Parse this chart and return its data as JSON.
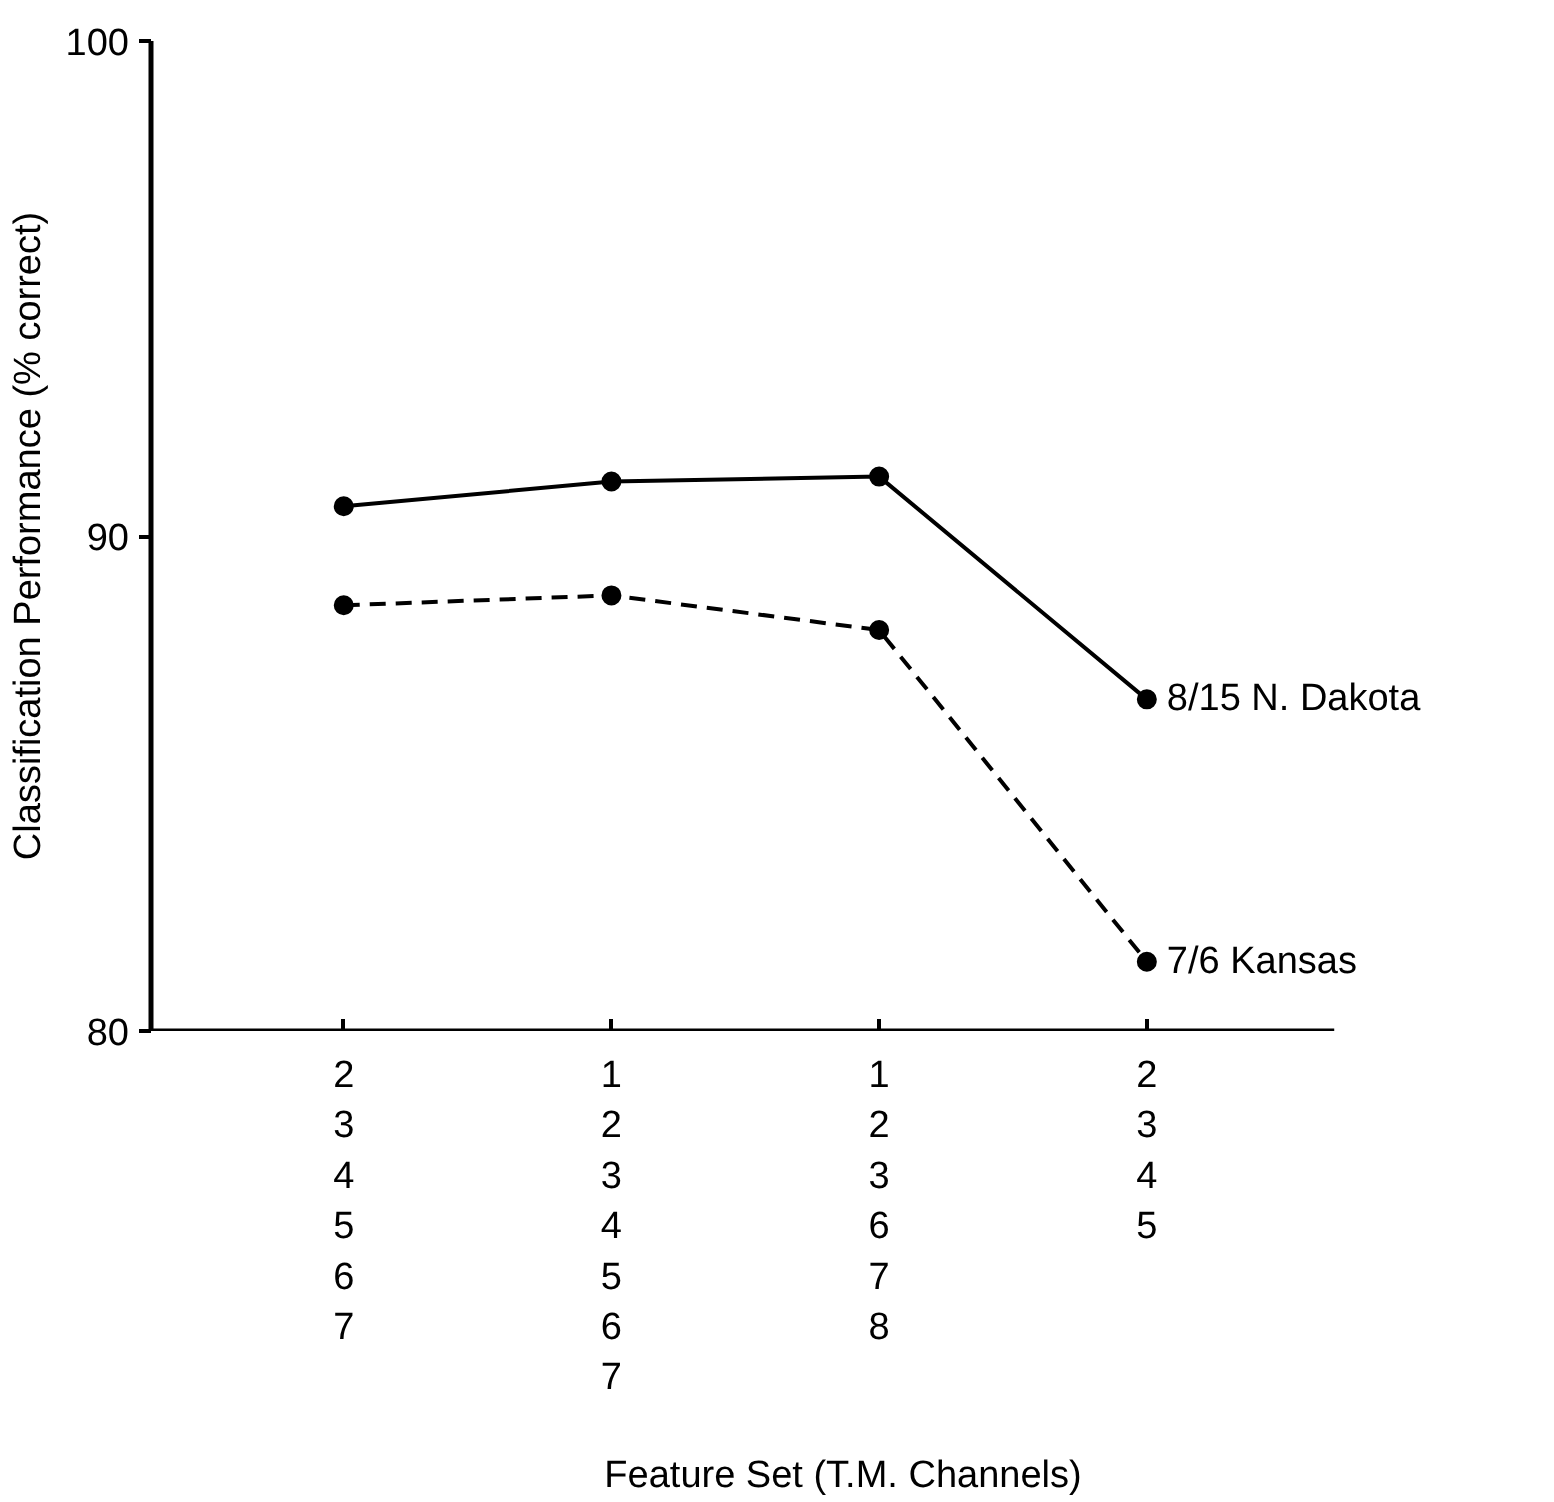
{
  "chart_data": {
    "type": "line",
    "xlabel": "Feature Set (T.M. Channels)",
    "ylabel": "Classification Performance (% correct)",
    "categories": [
      "2\n3\n4\n5\n6\n7",
      "1\n2\n3\n4\n5\n6\n7",
      "1\n2\n3\n6\n7\n8",
      "2\n3\n4\n5"
    ],
    "series": [
      {
        "name": "8/15 N. Dakota",
        "color": "#000000",
        "line_style": "solid",
        "values": [
          90.6,
          91.1,
          91.2,
          86.7
        ]
      },
      {
        "name": "7/6 Kansas",
        "color": "#000000",
        "line_style": "dashed",
        "values": [
          88.6,
          88.8,
          88.1,
          81.4
        ]
      }
    ],
    "ylim": [
      80,
      100
    ],
    "yticks": [
      80,
      90,
      100
    ],
    "marker": "circle",
    "grid": false
  }
}
